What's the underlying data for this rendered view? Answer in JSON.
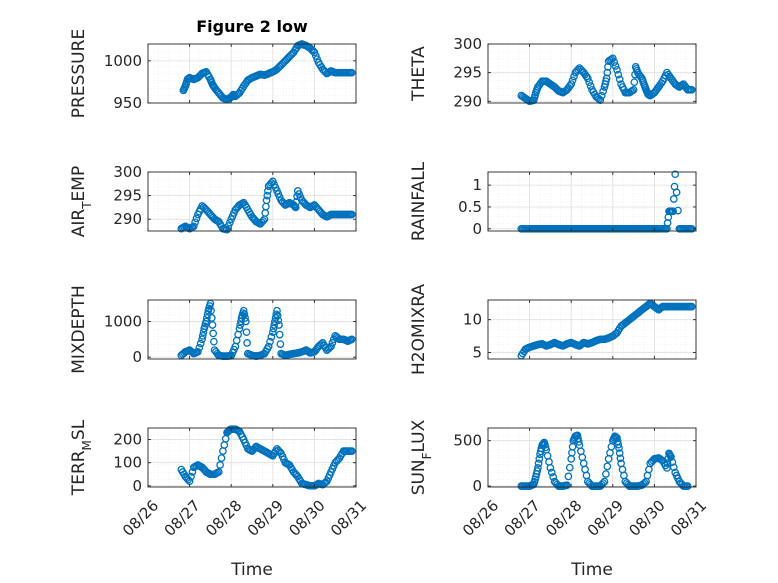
{
  "chart_data": [
    {
      "type": "scatter",
      "title": "Figure 2 low",
      "ylabel": "PRESSURE",
      "ylabel_parts": [
        {
          "t": "PRESSURE",
          "sub": false
        }
      ],
      "xlim": [
        0,
        5
      ],
      "ylim": [
        950,
        1020
      ],
      "yticks": [
        950,
        1000
      ],
      "xticks": [],
      "xlabel": "",
      "x": [
        0.85,
        0.9,
        0.95,
        1.0,
        1.1,
        1.2,
        1.3,
        1.4,
        1.5,
        1.55,
        1.6,
        1.7,
        1.8,
        1.9,
        2.0,
        2.05,
        2.1,
        2.2,
        2.3,
        2.4,
        2.5,
        2.6,
        2.7,
        2.8,
        2.9,
        3.0,
        3.1,
        3.2,
        3.3,
        3.4,
        3.5,
        3.6,
        3.7,
        3.8,
        3.9,
        4.0,
        4.1,
        4.2,
        4.3,
        4.4,
        4.5,
        4.6,
        4.7,
        4.8,
        4.9
      ],
      "y": [
        965,
        970,
        978,
        980,
        978,
        980,
        985,
        987,
        978,
        972,
        968,
        962,
        956,
        954,
        957,
        960,
        958,
        962,
        970,
        977,
        980,
        982,
        984,
        983,
        985,
        987,
        990,
        995,
        1000,
        1005,
        1010,
        1018,
        1020,
        1018,
        1015,
        1010,
        998,
        990,
        985,
        988,
        986,
        986,
        986,
        986,
        986
      ]
    },
    {
      "type": "scatter",
      "ylabel": "THETA",
      "ylabel_parts": [
        {
          "t": "THETA",
          "sub": false
        }
      ],
      "xlim": [
        0,
        5
      ],
      "ylim": [
        289.7,
        300
      ],
      "yticks": [
        290,
        295,
        300
      ],
      "xticks": [],
      "xlabel": "",
      "x": [
        0.8,
        0.9,
        1.0,
        1.1,
        1.15,
        1.2,
        1.3,
        1.4,
        1.5,
        1.6,
        1.7,
        1.8,
        1.9,
        2.0,
        2.1,
        2.2,
        2.3,
        2.4,
        2.5,
        2.6,
        2.7,
        2.8,
        2.85,
        2.9,
        3.0,
        3.1,
        3.2,
        3.3,
        3.4,
        3.5,
        3.55,
        3.6,
        3.7,
        3.75,
        3.8,
        3.85,
        3.9,
        4.0,
        4.1,
        4.2,
        4.3,
        4.4,
        4.5,
        4.6,
        4.7,
        4.8,
        4.9
      ],
      "y": [
        291,
        290.5,
        290,
        290.2,
        291.5,
        292.5,
        293.5,
        293.5,
        293,
        292.5,
        291.8,
        291.5,
        292,
        293,
        295,
        295.8,
        295,
        294,
        292,
        290.8,
        290.2,
        292.5,
        294,
        297,
        297.5,
        295.5,
        293,
        291.5,
        291.5,
        292,
        296,
        295,
        294,
        293,
        292,
        291.2,
        291,
        291.5,
        292.5,
        293.5,
        295,
        294,
        293,
        292.5,
        293,
        292,
        292
      ]
    },
    {
      "type": "scatter",
      "ylabel": "AIR_TEMP",
      "ylabel_parts": [
        {
          "t": "AIR",
          "sub": false
        },
        {
          "t": "T",
          "sub": true
        },
        {
          "t": "EMP",
          "sub": false
        }
      ],
      "xlim": [
        0,
        5
      ],
      "ylim": [
        287.5,
        300
      ],
      "yticks": [
        290,
        295,
        300
      ],
      "xticks": [],
      "xlabel": "",
      "x": [
        0.8,
        0.9,
        1.0,
        1.1,
        1.2,
        1.3,
        1.4,
        1.5,
        1.6,
        1.7,
        1.8,
        1.9,
        2.0,
        2.1,
        2.2,
        2.3,
        2.4,
        2.5,
        2.6,
        2.7,
        2.8,
        2.85,
        2.9,
        3.0,
        3.1,
        3.2,
        3.3,
        3.4,
        3.5,
        3.55,
        3.6,
        3.7,
        3.8,
        3.9,
        4.0,
        4.1,
        4.2,
        4.3,
        4.4,
        4.5,
        4.6,
        4.7,
        4.8,
        4.9
      ],
      "y": [
        288,
        288.5,
        288,
        288.5,
        291,
        292.8,
        292,
        291,
        290,
        289.5,
        288,
        287.8,
        290,
        292,
        293,
        293.5,
        292,
        290.5,
        289.5,
        289,
        290,
        294,
        297,
        298,
        296,
        294,
        293,
        293.5,
        293,
        292.5,
        296,
        294,
        293,
        292.5,
        293,
        292,
        291,
        290.5,
        291,
        291,
        291,
        291,
        291,
        291
      ]
    },
    {
      "type": "scatter",
      "ylabel": "RAINFALL",
      "ylabel_parts": [
        {
          "t": "RAINFALL",
          "sub": false
        }
      ],
      "xlim": [
        0,
        5
      ],
      "ylim": [
        -0.05,
        1.3
      ],
      "yticks": [
        0,
        0.5,
        1
      ],
      "xticks": [],
      "xlabel": "",
      "x": [
        0.8,
        0.9,
        1.0,
        1.1,
        1.2,
        1.3,
        1.4,
        1.5,
        1.6,
        1.7,
        1.8,
        1.9,
        2.0,
        2.1,
        2.2,
        2.3,
        2.4,
        2.5,
        2.6,
        2.7,
        2.8,
        2.9,
        3.0,
        3.1,
        3.2,
        3.3,
        3.4,
        3.5,
        3.6,
        3.7,
        3.8,
        3.9,
        4.0,
        4.05,
        4.1,
        4.2,
        4.3,
        4.35,
        4.4,
        4.45,
        4.5,
        4.6,
        4.7,
        4.8,
        4.9
      ],
      "y": [
        0,
        0,
        0,
        0,
        0,
        0,
        0,
        0,
        0,
        0,
        0,
        0,
        0,
        0,
        0,
        0,
        0,
        0,
        0,
        0,
        0,
        0,
        0,
        0,
        0,
        0,
        0,
        0,
        0,
        0,
        0,
        0,
        0,
        0,
        0,
        0,
        0,
        0.4,
        0.4,
        0.4,
        1.25,
        0,
        0,
        0,
        0
      ]
    },
    {
      "type": "scatter",
      "ylabel": "MIXDEPTH",
      "ylabel_parts": [
        {
          "t": "MIXDEPTH",
          "sub": false
        }
      ],
      "xlim": [
        0,
        5
      ],
      "ylim": [
        -50,
        1600
      ],
      "yticks": [
        0,
        1000
      ],
      "xticks": [],
      "xlabel": "",
      "x": [
        0.8,
        0.9,
        1.0,
        1.1,
        1.2,
        1.3,
        1.35,
        1.4,
        1.45,
        1.5,
        1.55,
        1.6,
        1.7,
        1.8,
        1.9,
        2.0,
        2.1,
        2.2,
        2.25,
        2.3,
        2.35,
        2.4,
        2.5,
        2.6,
        2.7,
        2.8,
        2.9,
        3.0,
        3.05,
        3.1,
        3.15,
        3.2,
        3.3,
        3.4,
        3.5,
        3.6,
        3.7,
        3.8,
        3.9,
        4.0,
        4.1,
        4.2,
        4.3,
        4.4,
        4.5,
        4.6,
        4.7,
        4.8,
        4.9
      ],
      "y": [
        50,
        150,
        200,
        100,
        150,
        500,
        800,
        1000,
        1300,
        1500,
        900,
        200,
        50,
        30,
        30,
        40,
        300,
        800,
        1100,
        1300,
        1000,
        100,
        50,
        30,
        50,
        100,
        300,
        700,
        1000,
        1300,
        900,
        100,
        50,
        80,
        100,
        120,
        150,
        200,
        120,
        150,
        300,
        400,
        200,
        300,
        600,
        500,
        500,
        450,
        500
      ]
    },
    {
      "type": "scatter",
      "ylabel": "H2OMIXRA",
      "ylabel_parts": [
        {
          "t": "H2OMIXRA",
          "sub": false
        }
      ],
      "xlim": [
        0,
        5
      ],
      "ylim": [
        4,
        13
      ],
      "yticks": [
        5,
        10
      ],
      "xticks": [],
      "xlabel": "",
      "x": [
        0.8,
        0.9,
        1.0,
        1.1,
        1.2,
        1.3,
        1.4,
        1.5,
        1.6,
        1.7,
        1.8,
        1.9,
        2.0,
        2.1,
        2.2,
        2.3,
        2.4,
        2.5,
        2.6,
        2.7,
        2.8,
        2.9,
        3.0,
        3.1,
        3.2,
        3.3,
        3.4,
        3.5,
        3.6,
        3.7,
        3.8,
        3.9,
        4.0,
        4.1,
        4.2,
        4.3,
        4.4,
        4.5,
        4.6,
        4.7,
        4.8,
        4.9
      ],
      "y": [
        4.5,
        5.5,
        5.8,
        6,
        6.2,
        6.3,
        6,
        6.2,
        6.5,
        6.2,
        6,
        6.3,
        6.5,
        6.2,
        6,
        6.5,
        6.3,
        6.5,
        6.8,
        7,
        7,
        7.2,
        7.5,
        8,
        9,
        9.5,
        10,
        10.5,
        11,
        11.5,
        12,
        12.5,
        12,
        11.5,
        12,
        12,
        12,
        12,
        12,
        12,
        12,
        12
      ]
    },
    {
      "type": "scatter",
      "ylabel": "TERR_MSL",
      "ylabel_parts": [
        {
          "t": "TERR",
          "sub": false
        },
        {
          "t": "M",
          "sub": true
        },
        {
          "t": "SL",
          "sub": false
        }
      ],
      "xlim": [
        0,
        5
      ],
      "ylim": [
        -5,
        250
      ],
      "yticks": [
        0,
        100,
        200
      ],
      "xticks": [
        0,
        1,
        2,
        3,
        4,
        5
      ],
      "xticklabels": [
        "08/26",
        "08/27",
        "08/28",
        "08/29",
        "08/30",
        "08/31"
      ],
      "xlabel": "Time",
      "x": [
        0.8,
        0.9,
        1.0,
        1.1,
        1.2,
        1.3,
        1.4,
        1.5,
        1.6,
        1.7,
        1.8,
        1.9,
        1.95,
        2.0,
        2.1,
        2.2,
        2.3,
        2.4,
        2.5,
        2.6,
        2.7,
        2.8,
        2.9,
        3.0,
        3.1,
        3.2,
        3.3,
        3.4,
        3.5,
        3.6,
        3.7,
        3.8,
        3.9,
        4.0,
        4.1,
        4.2,
        4.3,
        4.4,
        4.5,
        4.6,
        4.7,
        4.8,
        4.9
      ],
      "y": [
        70,
        40,
        20,
        80,
        90,
        80,
        60,
        50,
        50,
        60,
        150,
        230,
        240,
        245,
        245,
        235,
        200,
        160,
        150,
        170,
        160,
        150,
        140,
        130,
        160,
        140,
        100,
        90,
        60,
        40,
        10,
        5,
        0,
        0,
        10,
        5,
        20,
        60,
        100,
        120,
        150,
        150,
        150
      ]
    },
    {
      "type": "scatter",
      "ylabel": "SUN_FLUX",
      "ylabel_parts": [
        {
          "t": "SUN",
          "sub": false
        },
        {
          "t": "F",
          "sub": true
        },
        {
          "t": "LUX",
          "sub": false
        }
      ],
      "xlim": [
        0,
        5
      ],
      "ylim": [
        -10,
        640
      ],
      "yticks": [
        0,
        500
      ],
      "xticks": [
        0,
        1,
        2,
        3,
        4,
        5
      ],
      "xticklabels": [
        "08/26",
        "08/27",
        "08/28",
        "08/29",
        "08/30",
        "08/31"
      ],
      "xlabel": "Time",
      "x": [
        0.8,
        0.9,
        1.0,
        1.1,
        1.15,
        1.2,
        1.25,
        1.3,
        1.35,
        1.4,
        1.5,
        1.6,
        1.7,
        1.8,
        1.9,
        2.0,
        2.05,
        2.1,
        2.15,
        2.2,
        2.3,
        2.4,
        2.5,
        2.6,
        2.7,
        2.8,
        2.9,
        3.0,
        3.05,
        3.1,
        3.15,
        3.2,
        3.3,
        3.4,
        3.5,
        3.6,
        3.7,
        3.8,
        3.9,
        4.0,
        4.1,
        4.2,
        4.3,
        4.35,
        4.4,
        4.5,
        4.6,
        4.7,
        4.8
      ],
      "y": [
        0,
        0,
        0,
        20,
        100,
        200,
        350,
        450,
        480,
        400,
        200,
        50,
        0,
        0,
        10,
        300,
        500,
        550,
        560,
        450,
        250,
        50,
        0,
        0,
        0,
        50,
        300,
        500,
        550,
        530,
        420,
        250,
        50,
        0,
        0,
        0,
        10,
        50,
        250,
        300,
        310,
        280,
        200,
        360,
        320,
        150,
        50,
        0,
        0
      ]
    }
  ],
  "style": {
    "marker_color": "#0072BD",
    "axis_color": "#262626",
    "grid_color": "#dfdfdf"
  }
}
